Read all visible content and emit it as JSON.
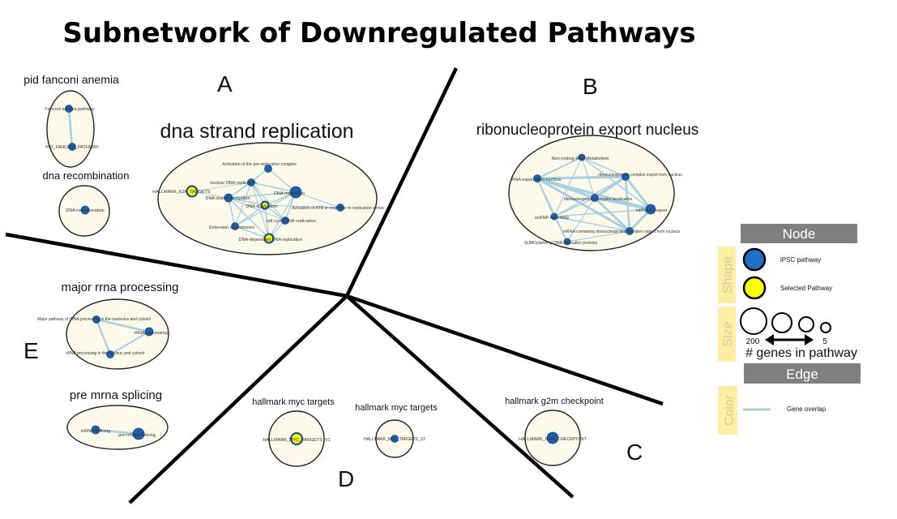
{
  "title": "Subnetwork of Downregulated Pathways",
  "regions": {
    "A": "A",
    "B": "B",
    "C": "C",
    "D": "D",
    "E": "E"
  },
  "clusters": {
    "pid_fanconi": {
      "label": "pid fanconi anemia",
      "nodes": [
        "Fanconi anemia pathway",
        "PID_FANCONI_PATHWAY"
      ]
    },
    "dna_recombination": {
      "label": "dna recombination",
      "nodes": [
        "DNA recombination"
      ]
    },
    "dna_strand": {
      "label": "dna strand replication",
      "nodes": [
        "Activation of the pre-replicative complex",
        "nuclear DNA replication",
        "HALLMARK_E2F_TARGETS",
        "DNA strand elongation",
        "DNA replication",
        "DNA duplication",
        "Activation of ATR in response to replication stress",
        "cell cycle DNA replication",
        "Extension of telomeres",
        "DNA-dependent DNA replication"
      ]
    },
    "ribonucleoprotein": {
      "label": "ribonucleoprotein export nucleus",
      "nodes": [
        "Non-coding RNA Metabolism",
        "RNA export from nucleus",
        "ribonucleoprotein complex export from nucleus",
        "ribonucleoprotein complex localization",
        "snRNP Assembly",
        "mRNA transport",
        "mRNA-containing ribonucleoprotein complex export from nucleus",
        "SUMOylation of DNA replication proteins"
      ]
    },
    "major_rrna": {
      "label": "major rrna processing",
      "nodes": [
        "Major pathway of rRNA processing in the nucleolus and cytosol",
        "rRNA processing",
        "rRNA processing in the nucleus and cytosol"
      ]
    },
    "pre_mrna": {
      "label": "pre mrna splicing",
      "nodes": [
        "mRNA Splicing",
        "pre-mRNA splicing"
      ]
    },
    "myc_v1": {
      "label": "hallmark myc targets",
      "nodes": [
        "HALLMARK_MYC_TARGETS_V1"
      ]
    },
    "myc_v2": {
      "label": "hallmark myc targets",
      "nodes": [
        "HALLMARK_MYC_TARGETS_V2"
      ]
    },
    "g2m": {
      "label": "hallmark g2m checkpoint",
      "nodes": [
        "HALLMARK_G2M_CHECKPOINT"
      ]
    }
  },
  "legend": {
    "node_header": "Node",
    "shape_label": "Shape",
    "ipsc_label": "iPSC pathway",
    "selected_label": "Selected Pathway",
    "size_label": "Size",
    "size_max": "200",
    "size_min": "5",
    "genes_label": "# genes in pathway",
    "edge_header": "Edge",
    "color_label": "Color",
    "overlap_label": "Gene overlap",
    "colors": {
      "header_bg": "#7f7f7f",
      "side_bg": "#fdeea3",
      "side_text": "#d8c999",
      "ipsc_fill": "#1f6fc5",
      "selected_fill": "#ffff00",
      "edge_color": "#a9cfe2"
    }
  }
}
